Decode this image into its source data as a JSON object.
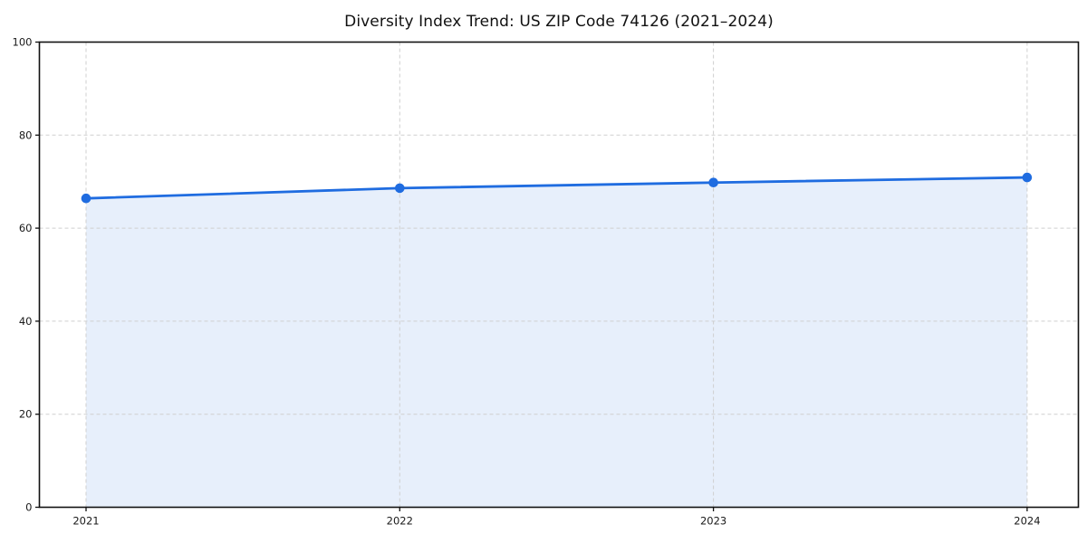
{
  "chart": {
    "title": "Diversity Index Trend: US ZIP Code 74126 (2021–2024)"
  },
  "chart_data": {
    "type": "area",
    "categories": [
      "2021",
      "2022",
      "2023",
      "2024"
    ],
    "values": [
      66.4,
      68.6,
      69.8,
      70.9
    ],
    "title": "Diversity Index Trend: US ZIP Code 74126 (2021–2024)",
    "xlabel": "",
    "ylabel": "",
    "ylim": [
      0,
      100
    ],
    "yticks": [
      0,
      20,
      40,
      60,
      80,
      100
    ],
    "grid": true,
    "grid_style": "dashed",
    "legend_position": "none",
    "colors": {
      "line": "#1f6ce0",
      "marker": "#1f6ce0",
      "area_fill": "#e7effb",
      "grid": "#cfcfcf",
      "axis": "#111111",
      "tick_label": "#1a1a1a",
      "background": "#ffffff"
    }
  }
}
